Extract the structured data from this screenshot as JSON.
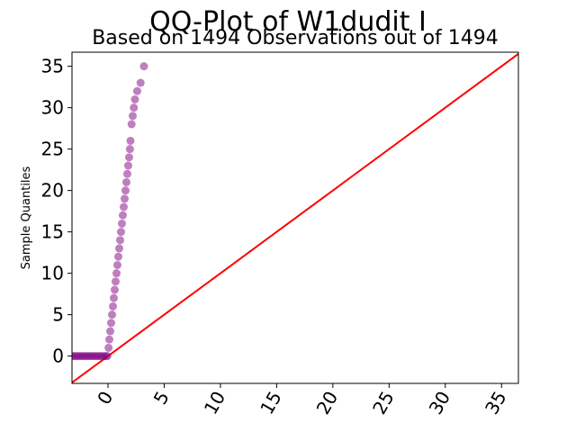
{
  "chart_data": {
    "type": "scatter",
    "title": "QQ-Plot of W1dudit I",
    "subtitle": "Based on 1494 Observations out of 1494",
    "xlabel": "",
    "ylabel": "Sample Quantiles",
    "xlim": [
      -3.2,
      36.5
    ],
    "ylim": [
      -3.3,
      36.7
    ],
    "x_ticks": [
      0,
      5,
      10,
      15,
      20,
      25,
      30,
      35
    ],
    "y_ticks": [
      0,
      5,
      10,
      15,
      20,
      25,
      30,
      35
    ],
    "x_tick_labels": [
      "0",
      "5",
      "10",
      "15",
      "20",
      "25",
      "30",
      "35"
    ],
    "y_tick_labels": [
      "0",
      "5",
      "10",
      "15",
      "20",
      "25",
      "30",
      "35"
    ],
    "grid": false,
    "legend": "none",
    "marker_color": "#800080",
    "reference_line_color": "#ff0000",
    "reference_line": {
      "x": [
        -3.2,
        36.5
      ],
      "y": [
        -3.2,
        36.5
      ]
    },
    "points": [
      {
        "x": -3.2,
        "y": 0
      },
      {
        "x": -3.0,
        "y": 0
      },
      {
        "x": -2.8,
        "y": 0
      },
      {
        "x": -2.6,
        "y": 0
      },
      {
        "x": -2.4,
        "y": 0
      },
      {
        "x": -2.2,
        "y": 0
      },
      {
        "x": -2.0,
        "y": 0
      },
      {
        "x": -1.8,
        "y": 0
      },
      {
        "x": -1.6,
        "y": 0
      },
      {
        "x": -1.4,
        "y": 0
      },
      {
        "x": -1.2,
        "y": 0
      },
      {
        "x": -1.0,
        "y": 0
      },
      {
        "x": -0.8,
        "y": 0
      },
      {
        "x": -0.6,
        "y": 0
      },
      {
        "x": -0.4,
        "y": 0
      },
      {
        "x": -0.2,
        "y": 0
      },
      {
        "x": -0.05,
        "y": 0
      },
      {
        "x": 0.05,
        "y": 1
      },
      {
        "x": 0.12,
        "y": 2
      },
      {
        "x": 0.2,
        "y": 3
      },
      {
        "x": 0.28,
        "y": 4
      },
      {
        "x": 0.36,
        "y": 5
      },
      {
        "x": 0.44,
        "y": 6
      },
      {
        "x": 0.52,
        "y": 7
      },
      {
        "x": 0.6,
        "y": 8
      },
      {
        "x": 0.68,
        "y": 9
      },
      {
        "x": 0.76,
        "y": 10
      },
      {
        "x": 0.84,
        "y": 11
      },
      {
        "x": 0.92,
        "y": 12
      },
      {
        "x": 1.0,
        "y": 13
      },
      {
        "x": 1.08,
        "y": 14
      },
      {
        "x": 1.16,
        "y": 15
      },
      {
        "x": 1.24,
        "y": 16
      },
      {
        "x": 1.32,
        "y": 17
      },
      {
        "x": 1.4,
        "y": 18
      },
      {
        "x": 1.48,
        "y": 19
      },
      {
        "x": 1.56,
        "y": 20
      },
      {
        "x": 1.64,
        "y": 21
      },
      {
        "x": 1.72,
        "y": 22
      },
      {
        "x": 1.8,
        "y": 23
      },
      {
        "x": 1.88,
        "y": 24
      },
      {
        "x": 1.95,
        "y": 25
      },
      {
        "x": 2.0,
        "y": 26
      },
      {
        "x": 2.1,
        "y": 28
      },
      {
        "x": 2.2,
        "y": 29
      },
      {
        "x": 2.3,
        "y": 30
      },
      {
        "x": 2.4,
        "y": 31
      },
      {
        "x": 2.6,
        "y": 32
      },
      {
        "x": 2.9,
        "y": 33
      },
      {
        "x": 3.2,
        "y": 35
      }
    ]
  }
}
